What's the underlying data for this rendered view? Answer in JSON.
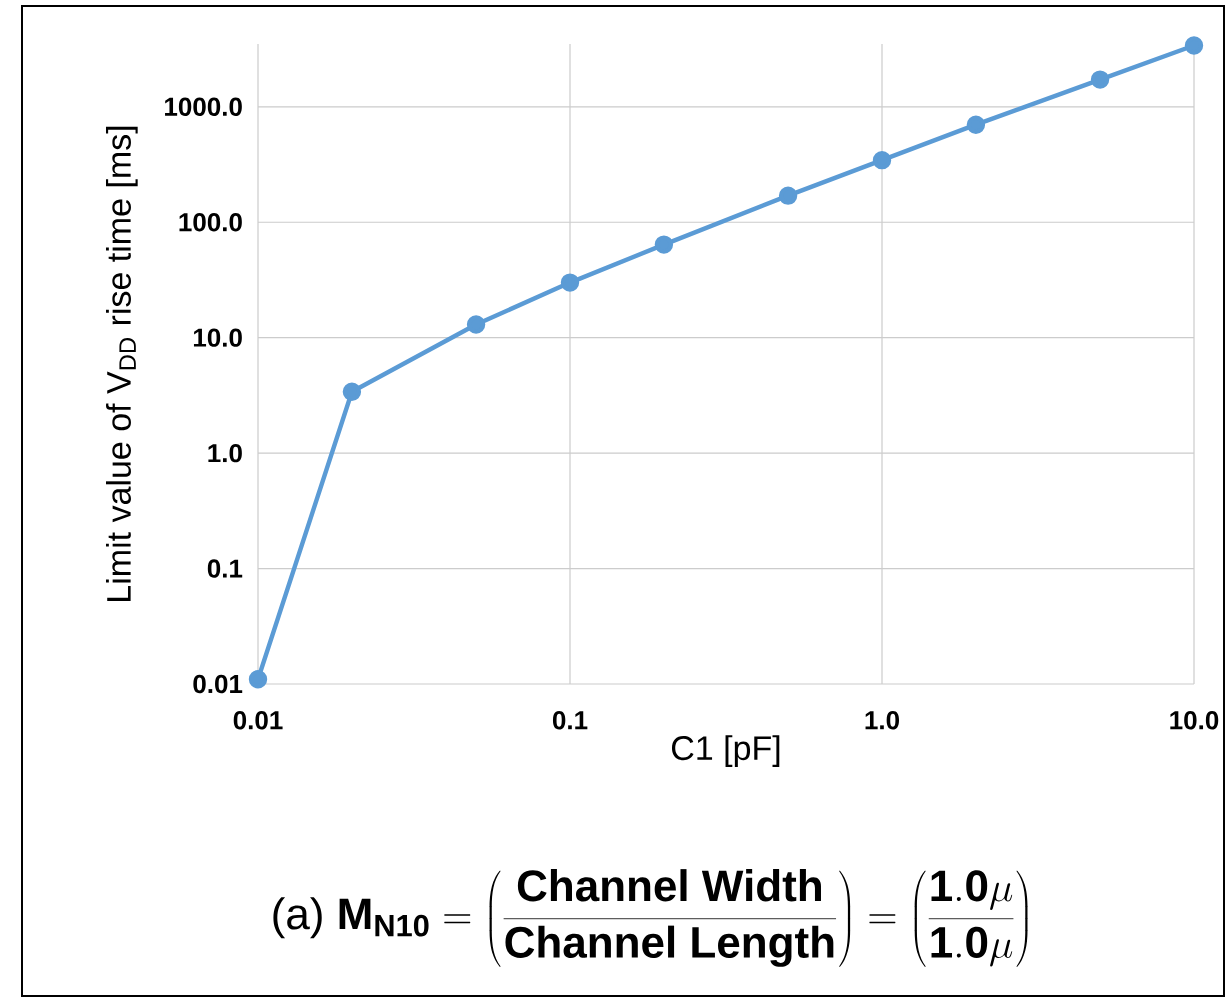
{
  "chart_data": {
    "type": "line",
    "xlabel": "C1 [pF]",
    "ylabel": "Limit value of V$_{DD}$ rise time [ms]",
    "x": [
      0.01,
      0.02,
      0.05,
      0.1,
      0.2,
      0.5,
      1,
      2,
      5,
      10
    ],
    "series": [
      {
        "color": "#5b9bd5",
        "values": [
          0.011,
          3.4,
          13,
          30,
          64,
          170,
          345,
          700,
          1720,
          3400
        ]
      }
    ],
    "log": "xy",
    "xlim": [
      0.01,
      10
    ],
    "ylim": [
      0.01,
      3500
    ],
    "xticks": [
      {
        "value": 0.01,
        "label": "0.01"
      },
      {
        "value": 0.1,
        "label": "0.1"
      },
      {
        "value": 1,
        "label": "1.0"
      },
      {
        "value": 10,
        "label": "10.0"
      }
    ],
    "yticks": [
      {
        "value": 0.01,
        "label": "0.01"
      },
      {
        "value": 0.1,
        "label": "0.1"
      },
      {
        "value": 1,
        "label": "1.0"
      },
      {
        "value": 10,
        "label": "10.0"
      },
      {
        "value": 100,
        "label": "100.0"
      },
      {
        "value": 1000,
        "label": "1000.0"
      }
    ],
    "grid": true,
    "marker": "circle",
    "line_style": "solid",
    "annotations": [
      "(a)",
      "\\mathbf{M_{N10}} = \\left(\\frac{\\textbf{Channel Width}}{\\textbf{Channel Length}}\\right) = \\left(\\frac{\\mathbf{1.0\\mu}}{\\mathbf{1.0\\mu}}\\right)"
    ]
  }
}
